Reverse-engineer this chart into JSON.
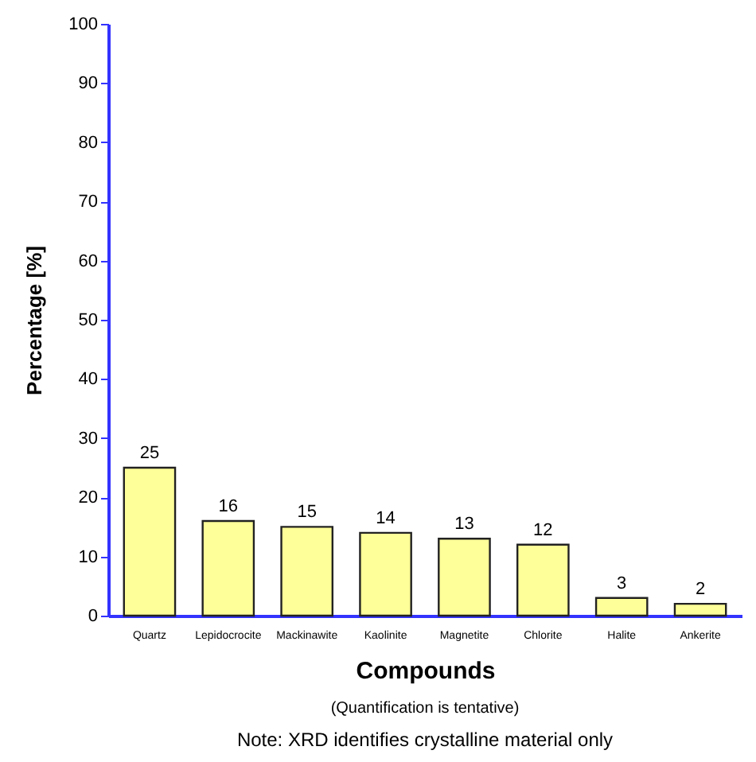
{
  "chart_data": {
    "type": "bar",
    "xlabel": "Compounds",
    "ylabel": "Percentage [%]",
    "categories": [
      "Quartz",
      "Lepidocrocite",
      "Mackinawite",
      "Kaolinite",
      "Magnetite",
      "Chlorite",
      "Halite",
      "Ankerite"
    ],
    "values": [
      25,
      16,
      15,
      14,
      13,
      12,
      3,
      2
    ],
    "color": "#ffff99",
    "ylim": [
      0,
      100
    ],
    "yticks": [
      0,
      10,
      20,
      30,
      40,
      50,
      60,
      70,
      80,
      90,
      100
    ],
    "grid": false,
    "data_labels": true,
    "annotations": [
      "(Quantification is tentative)",
      "Note: XRD identifies crystalline material only"
    ]
  }
}
